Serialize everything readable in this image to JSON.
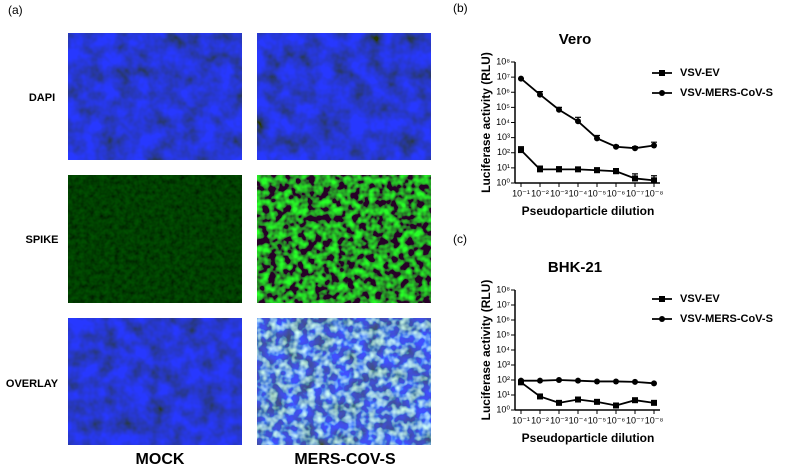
{
  "figure": {
    "panel_labels": [
      "(a)",
      "(b)",
      "(c)"
    ],
    "row_labels": [
      "DAPI",
      "SPIKE",
      "OVERLAY"
    ],
    "column_labels": [
      "MOCK",
      "MERS-COV-S"
    ]
  },
  "chart_data": [
    {
      "type": "line",
      "title": "Vero",
      "xlabel": "Pseudoparticle dilution",
      "ylabel": "Luciferase activity (RLU)",
      "categories": [
        "10⁻¹",
        "10⁻²",
        "10⁻³",
        "10⁻⁴",
        "10⁻⁵",
        "10⁻⁶",
        "10⁻⁷",
        "10⁻⁸"
      ],
      "log_y": true,
      "ylim": [
        1,
        100000000
      ],
      "yticks": [
        {
          "value": 1,
          "label": "10⁰"
        },
        {
          "value": 10,
          "label": "10¹"
        },
        {
          "value": 100,
          "label": "10²"
        },
        {
          "value": 1000,
          "label": "10³"
        },
        {
          "value": 10000,
          "label": "10⁴"
        },
        {
          "value": 100000,
          "label": "10⁵"
        },
        {
          "value": 1000000,
          "label": "10⁶"
        },
        {
          "value": 10000000,
          "label": "10⁷"
        },
        {
          "value": 100000000,
          "label": "10⁸"
        }
      ],
      "series": [
        {
          "name": "VSV-EV",
          "color": "#000000",
          "marker": "square",
          "values": [
            150,
            8,
            8,
            8,
            7,
            6,
            2,
            1.5
          ],
          "errors": [
            100,
            5,
            4,
            3,
            3,
            3,
            2,
            1.5
          ]
        },
        {
          "name": "VSV-MERS-CoV-S",
          "color": "#000000",
          "marker": "circle",
          "values": [
            8000000,
            700000,
            70000,
            12000,
            900,
            250,
            200,
            300
          ],
          "errors": [
            0,
            400000,
            30000,
            10000,
            500,
            50,
            50,
            200
          ]
        }
      ]
    },
    {
      "type": "line",
      "title": "BHK-21",
      "xlabel": "Pseudoparticle dilution",
      "ylabel": "Luciferase activity (RLU)",
      "categories": [
        "10⁻¹",
        "10⁻²",
        "10⁻³",
        "10⁻⁴",
        "10⁻⁵",
        "10⁻⁶",
        "10⁻⁷",
        "10⁻⁸"
      ],
      "log_y": true,
      "ylim": [
        1,
        100000000
      ],
      "yticks": [
        {
          "value": 1,
          "label": "10⁰"
        },
        {
          "value": 10,
          "label": "10¹"
        },
        {
          "value": 100,
          "label": "10²"
        },
        {
          "value": 1000,
          "label": "10³"
        },
        {
          "value": 10000,
          "label": "10⁴"
        },
        {
          "value": 100000,
          "label": "10⁵"
        },
        {
          "value": 1000000,
          "label": "10⁶"
        },
        {
          "value": 10000000,
          "label": "10⁷"
        },
        {
          "value": 100000000,
          "label": "10⁸"
        }
      ],
      "series": [
        {
          "name": "VSV-EV",
          "color": "#000000",
          "marker": "square",
          "values": [
            70,
            8,
            3,
            5,
            3.5,
            2,
            4.5,
            3
          ]
        },
        {
          "name": "VSV-MERS-CoV-S",
          "color": "#000000",
          "marker": "circle",
          "values": [
            90,
            90,
            100,
            90,
            80,
            80,
            75,
            60
          ]
        }
      ]
    }
  ]
}
